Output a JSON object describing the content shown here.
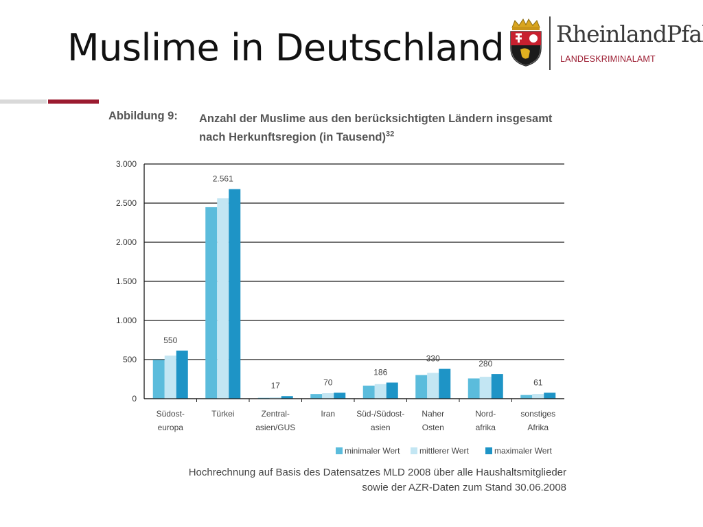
{
  "slide": {
    "title": "Muslime in Deutschland"
  },
  "logo": {
    "name": "RheinlandPfalz",
    "subtitle": "LANDESKRIMINALAMT",
    "icon": "coat-of-arms-icon"
  },
  "figure": {
    "label": "Abbildung 9:",
    "title": "Anzahl der Muslime aus den berücksichtigten Ländern insgesamt nach Herkunftsregion (in Tausend)",
    "footnote_marker": "32",
    "note_line1": "Hochrechnung auf Basis des Datensatzes MLD 2008 über alle Haushaltsmitglieder",
    "note_line2": "sowie der AZR-Daten zum Stand 30.06.2008"
  },
  "colors": {
    "min": "#5bbcdc",
    "mid": "#c3e6f3",
    "max": "#1e94c6",
    "accent": "#9b1b30"
  },
  "chart_data": {
    "type": "bar",
    "title": "Anzahl der Muslime aus den berücksichtigten Ländern insgesamt nach Herkunftsregion (in Tausend)",
    "categories": [
      [
        "Südost-",
        "europa"
      ],
      [
        "Türkei"
      ],
      [
        "Zentral-",
        "asien/GUS"
      ],
      [
        "Iran"
      ],
      [
        "Süd-/Südost-",
        "asien"
      ],
      [
        "Naher",
        "Osten"
      ],
      [
        "Nord-",
        "afrika"
      ],
      [
        "sonstiges",
        "Afrika"
      ]
    ],
    "series": [
      {
        "name": "minimaler Wert",
        "values": [
          496,
          2448,
          11,
          60,
          167,
          302,
          259,
          47
        ]
      },
      {
        "name": "mittlerer Wert",
        "values": [
          550,
          2561,
          17,
          70,
          186,
          330,
          280,
          61
        ]
      },
      {
        "name": "maximaler Wert",
        "values": [
          615,
          2679,
          33,
          76,
          206,
          381,
          315,
          76
        ]
      }
    ],
    "data_labels": [
      "550",
      "2.561",
      "17",
      "70",
      "186",
      "330",
      "280",
      "61"
    ],
    "ylim": [
      0,
      3000
    ],
    "yticks": [
      0,
      500,
      1000,
      1500,
      2000,
      2500,
      3000
    ],
    "ytick_labels": [
      "0",
      "500",
      "1.000",
      "1.500",
      "2.000",
      "2.500",
      "3.000"
    ],
    "grid": true,
    "legend_position": "bottom-right"
  }
}
